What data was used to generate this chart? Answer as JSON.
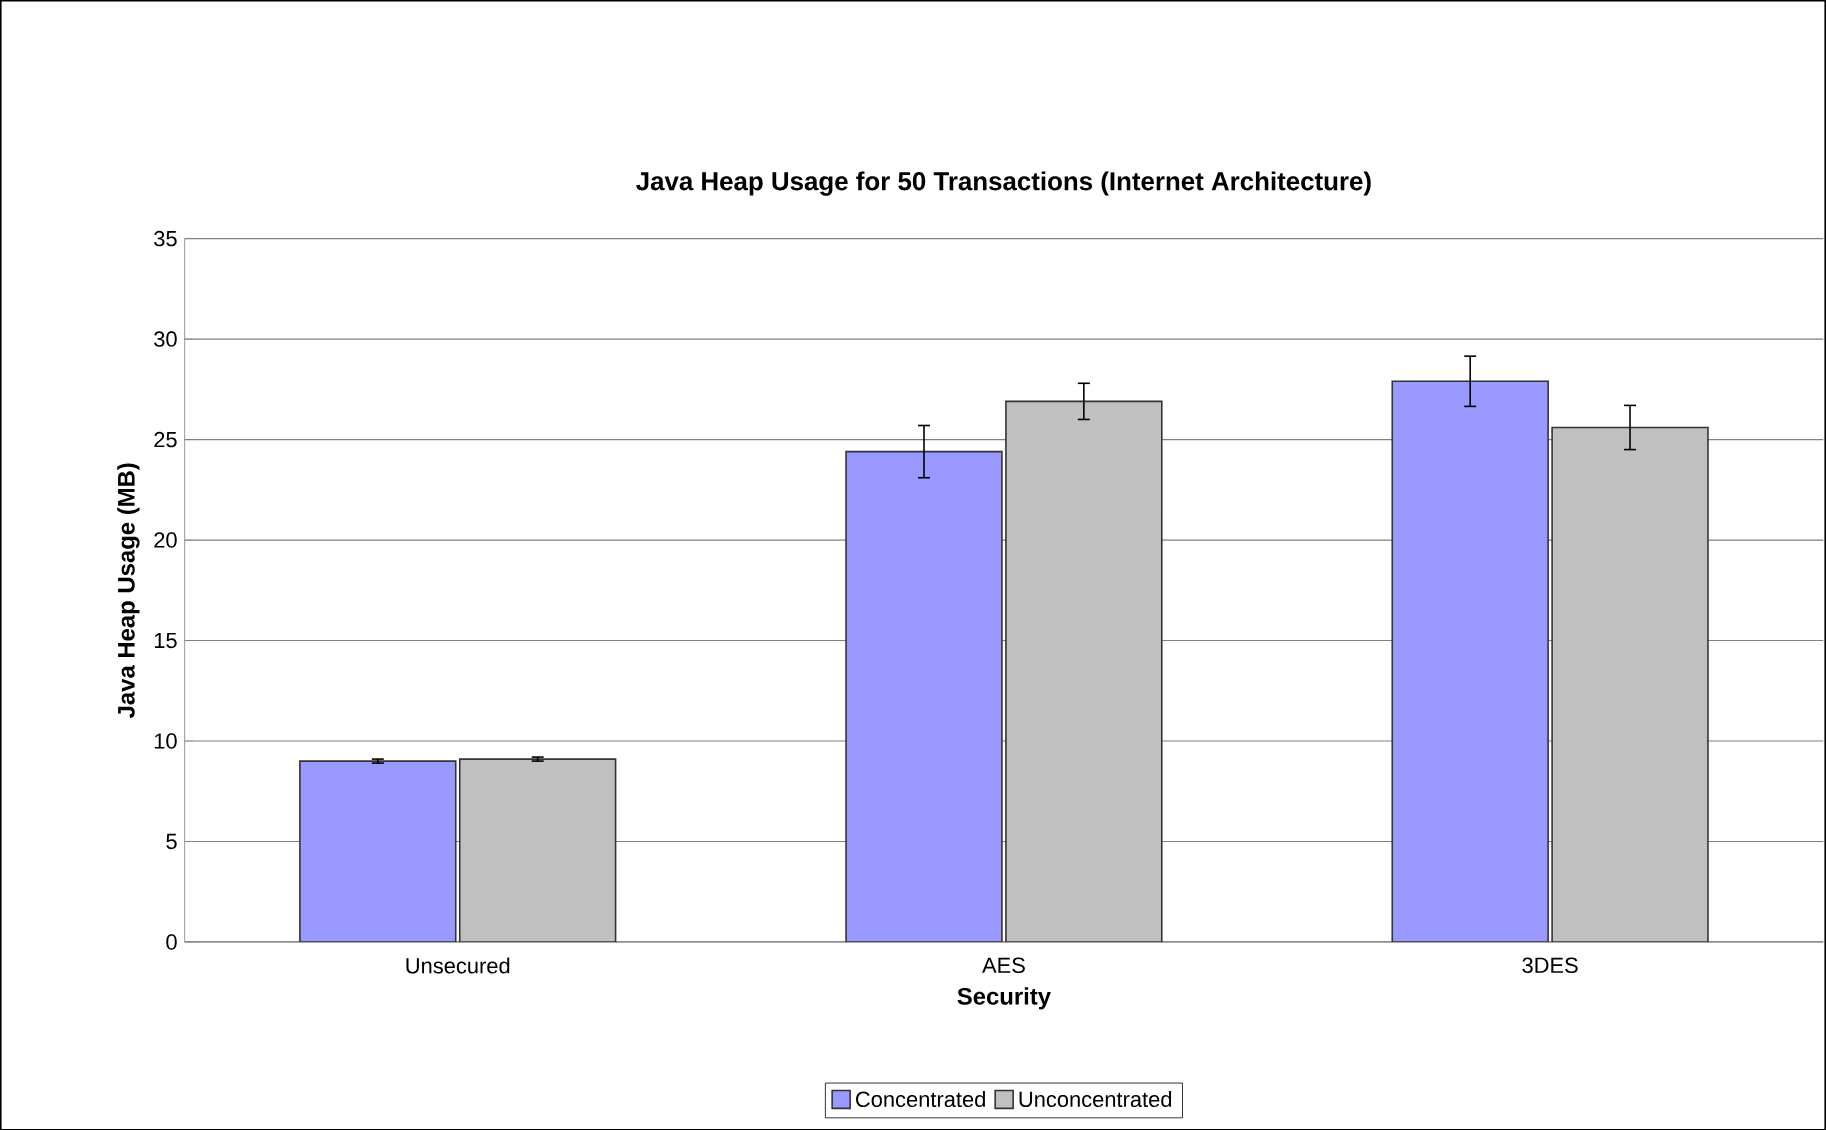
{
  "chart_data": {
    "type": "bar",
    "title": "Java Heap Usage for 50 Transactions (Internet Architecture)",
    "xlabel": "Security",
    "ylabel": "Java Heap Usage (MB)",
    "categories": [
      "Unsecured",
      "AES",
      "3DES"
    ],
    "series": [
      {
        "name": "Concentrated",
        "color": "#9999ff",
        "values": [
          9.0,
          24.4,
          27.9
        ],
        "errors": [
          0.1,
          1.3,
          1.25
        ]
      },
      {
        "name": "Unconcentrated",
        "color": "#c0c0c0",
        "values": [
          9.1,
          26.9,
          25.6
        ],
        "errors": [
          0.1,
          0.9,
          1.1
        ]
      }
    ],
    "ylim": [
      0,
      35
    ],
    "yticks": [
      0,
      5,
      10,
      15,
      20,
      25,
      30,
      35
    ],
    "grid": "y",
    "legend": "bottom"
  }
}
